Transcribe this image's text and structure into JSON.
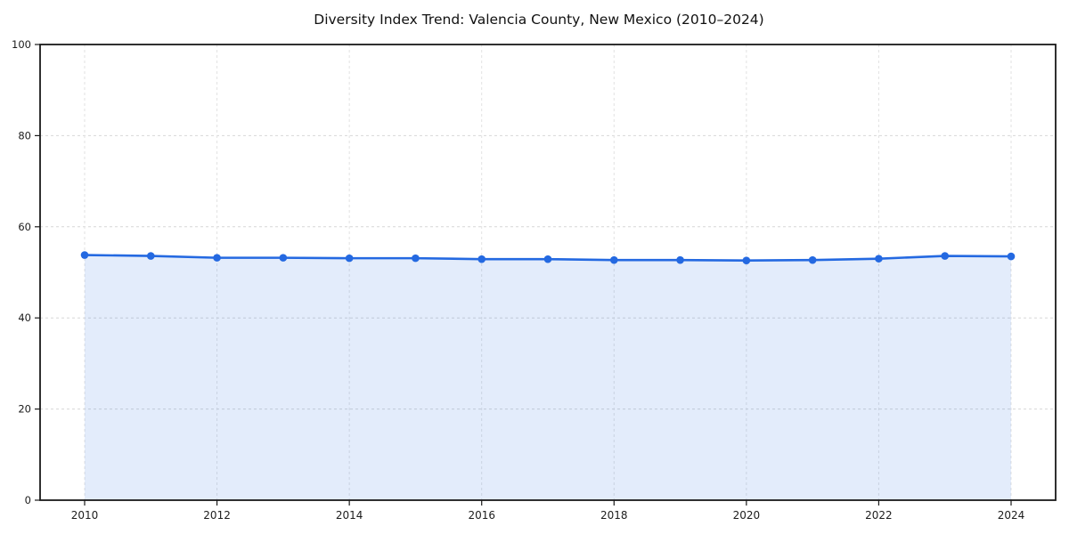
{
  "chart_data": {
    "type": "area",
    "title": "Diversity Index Trend: Valencia County, New Mexico (2010–2024)",
    "x": [
      2010,
      2011,
      2012,
      2013,
      2014,
      2015,
      2016,
      2017,
      2018,
      2019,
      2020,
      2021,
      2022,
      2023,
      2024
    ],
    "series": [
      {
        "name": "Diversity Index",
        "values": [
          53.8,
          53.6,
          53.2,
          53.2,
          53.1,
          53.1,
          52.9,
          52.9,
          52.7,
          52.7,
          52.6,
          52.7,
          53.0,
          53.6,
          53.5
        ]
      }
    ],
    "ylim": [
      0,
      100
    ],
    "yticks": [
      0,
      20,
      40,
      60,
      80,
      100
    ],
    "xticks": [
      2010,
      2012,
      2014,
      2016,
      2018,
      2020,
      2022,
      2024
    ],
    "grid": true,
    "legend_position": "none",
    "colors": {
      "line": "#2469e1",
      "marker": "#2469e1",
      "fill": "#2469e1",
      "fill_opacity": 0.13,
      "grid_horizontal": "#d7d7d7",
      "grid_vertical": "#e2e2e2",
      "spine": "#1a1a1a",
      "tick": "#1a1a1a",
      "tick_label": "#1c1c1c",
      "title": "#111111",
      "background": "#ffffff"
    }
  }
}
